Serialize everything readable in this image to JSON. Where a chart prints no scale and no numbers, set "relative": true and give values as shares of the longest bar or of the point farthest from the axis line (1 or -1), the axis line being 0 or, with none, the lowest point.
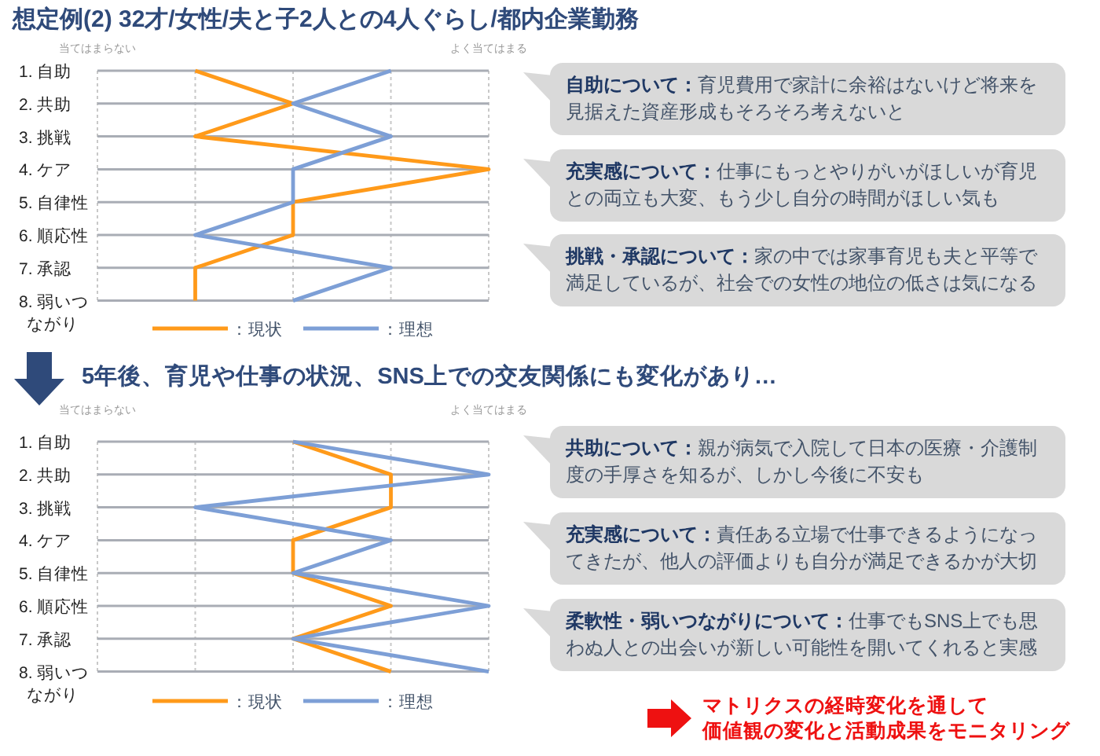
{
  "chart_data": [
    {
      "type": "line",
      "orientation": "horizontal",
      "title": "想定例(2) 32才/女性/夫と子2人との4人ぐらし/都内企業勤務",
      "categories": [
        "1. 自助",
        "2. 共助",
        "3. 挑戦",
        "4. ケア",
        "5. 自律性",
        "6. 順応性",
        "7. 承認",
        "8. 弱いつながり"
      ],
      "series": [
        {
          "name": "：現状",
          "color": "#ff9a1a",
          "values": [
            0.25,
            0.5,
            0.25,
            1,
            0.5,
            0.5,
            0.25,
            0.25
          ]
        },
        {
          "name": "：理想",
          "color": "#7d9fd6",
          "values": [
            0.75,
            0.5,
            0.75,
            0.5,
            0.5,
            0.25,
            0.75,
            0.5
          ]
        }
      ],
      "relative": true,
      "grid": true,
      "legend": "bottom",
      "marker": "none",
      "line_style": "solid",
      "annotations": [
        "当てはまらない",
        "よく当てはまる",
        "自助について：育児費用で家計に余裕はないけど将来を見据えた資産形成もそろそろ考えないと",
        "充実感について：仕事にもっとやりがいがほしいが育児との両立も大変、もう少し自分の時間がほしい気も",
        "挑戦・承認について：家の中では家事育児も夫と平等で満足しているが、社会での女性の地位の低さは気になる"
      ]
    },
    {
      "type": "line",
      "orientation": "horizontal",
      "title": "5年後、育児や仕事の状況、SNS上での交友関係にも変化があり…",
      "categories": [
        "1. 自助",
        "2. 共助",
        "3. 挑戦",
        "4. ケア",
        "5. 自律性",
        "6. 順応性",
        "7. 承認",
        "8. 弱いつながり"
      ],
      "series": [
        {
          "name": "：現状",
          "color": "#ff9a1a",
          "values": [
            0.5,
            0.75,
            0.75,
            0.5,
            0.5,
            0.75,
            0.5,
            0.75
          ]
        },
        {
          "name": "：理想",
          "color": "#7d9fd6",
          "values": [
            0.5,
            1,
            0.25,
            0.75,
            0.5,
            1,
            0.5,
            1
          ]
        }
      ],
      "relative": true,
      "grid": true,
      "legend": "bottom",
      "marker": "none",
      "line_style": "solid",
      "annotations": [
        "当てはまらない",
        "よく当てはまる",
        "共助について：親が病気で入院して日本の医療・介護制度の手厚さを知るが、しかし今後に不安も",
        "充実感について：責任ある立場で仕事できるようになってきたが、他人の評価よりも自分が満足できるかが大切",
        "柔軟性・弱いつながりについて：仕事でもSNS上でも思わぬ人との出会いが新しい可能性を開いてくれると実感",
        "マトリクスの経時変化を通して",
        "価値観の変化と活動成果をモニタリング"
      ]
    }
  ]
}
